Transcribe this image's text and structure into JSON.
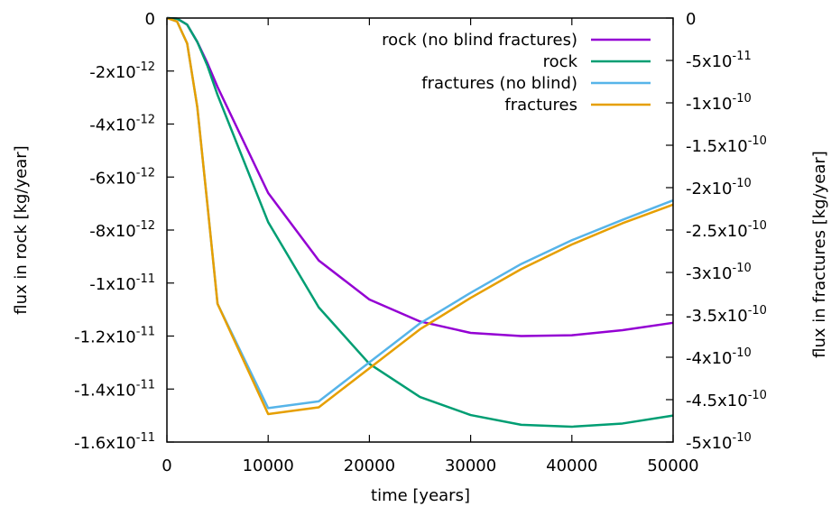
{
  "chart_data": {
    "type": "line",
    "xlabel": "time [years]",
    "ylabel_left": "flux in rock [kg/year]",
    "ylabel_right": "flux in fractures [kg/year]",
    "xlim": [
      0,
      50000
    ],
    "ylim_left": [
      -1.6e-11,
      0
    ],
    "ylim_right": [
      -5e-10,
      0
    ],
    "grid": false,
    "legend_position": "top-right",
    "x_ticks": [
      0,
      10000,
      20000,
      30000,
      40000,
      50000
    ],
    "x_tick_labels": [
      "0",
      "10000",
      "20000",
      "30000",
      "40000",
      "50000"
    ],
    "left_ticks": [
      0,
      -2e-12,
      -4e-12,
      -6e-12,
      -8e-12,
      -1e-11,
      -1.2e-11,
      -1.4e-11,
      -1.6e-11
    ],
    "left_tick_labels": [
      {
        "mant": "0",
        "exp": ""
      },
      {
        "mant": "-2x10",
        "exp": "-12"
      },
      {
        "mant": "-4x10",
        "exp": "-12"
      },
      {
        "mant": "-6x10",
        "exp": "-12"
      },
      {
        "mant": "-8x10",
        "exp": "-12"
      },
      {
        "mant": "-1x10",
        "exp": "-11"
      },
      {
        "mant": "-1.2x10",
        "exp": "-11"
      },
      {
        "mant": "-1.4x10",
        "exp": "-11"
      },
      {
        "mant": "-1.6x10",
        "exp": "-11"
      }
    ],
    "right_ticks": [
      0,
      -5e-11,
      -1e-10,
      -1.5e-10,
      -2e-10,
      -2.5e-10,
      -3e-10,
      -3.5e-10,
      -4e-10,
      -4.5e-10,
      -5e-10
    ],
    "right_tick_labels": [
      {
        "mant": "0",
        "exp": ""
      },
      {
        "mant": "-5x10",
        "exp": "-11"
      },
      {
        "mant": "-1x10",
        "exp": "-10"
      },
      {
        "mant": "-1.5x10",
        "exp": "-10"
      },
      {
        "mant": "-2x10",
        "exp": "-10"
      },
      {
        "mant": "-2.5x10",
        "exp": "-10"
      },
      {
        "mant": "-3x10",
        "exp": "-10"
      },
      {
        "mant": "-3.5x10",
        "exp": "-10"
      },
      {
        "mant": "-4x10",
        "exp": "-10"
      },
      {
        "mant": "-4.5x10",
        "exp": "-10"
      },
      {
        "mant": "-5x10",
        "exp": "-10"
      }
    ],
    "series": [
      {
        "name": "rock (no blind fractures)",
        "axis": "left",
        "color": "#9400d3",
        "x": [
          0,
          1000,
          2000,
          3000,
          4000,
          5000,
          10000,
          15000,
          20000,
          25000,
          30000,
          35000,
          40000,
          45000,
          50000
        ],
        "y": [
          0,
          -2e-14,
          -2.5e-13,
          -9e-13,
          -1.7e-12,
          -2.6e-12,
          -6.6e-12,
          -9.15e-12,
          -1.062e-11,
          -1.145e-11,
          -1.188e-11,
          -1.2e-11,
          -1.197e-11,
          -1.178e-11,
          -1.15e-11
        ]
      },
      {
        "name": "rock",
        "axis": "left",
        "color": "#009e73",
        "x": [
          0,
          1000,
          2000,
          3000,
          4000,
          5000,
          10000,
          15000,
          20000,
          25000,
          30000,
          35000,
          40000,
          45000,
          50000
        ],
        "y": [
          0,
          -2e-14,
          -2.5e-13,
          -9e-13,
          -1.8e-12,
          -2.9e-12,
          -7.7e-12,
          -1.092e-11,
          -1.305e-11,
          -1.43e-11,
          -1.498e-11,
          -1.535e-11,
          -1.542e-11,
          -1.53e-11,
          -1.5e-11
        ]
      },
      {
        "name": "fractures (no blind)",
        "axis": "right",
        "color": "#56b4e9",
        "x": [
          0,
          1000,
          2000,
          3000,
          4000,
          5000,
          10000,
          15000,
          20000,
          25000,
          30000,
          35000,
          40000,
          45000,
          50000
        ],
        "y": [
          0,
          -4e-12,
          -3e-11,
          -1.05e-10,
          -2.2e-10,
          -3.37e-10,
          -4.6e-10,
          -4.52e-10,
          -4.06e-10,
          -3.6e-10,
          -3.24e-10,
          -2.9e-10,
          -2.62e-10,
          -2.38e-10,
          -2.15e-10
        ]
      },
      {
        "name": "fractures",
        "axis": "right",
        "color": "#e69f00",
        "x": [
          0,
          1000,
          2000,
          3000,
          4000,
          5000,
          10000,
          15000,
          20000,
          25000,
          30000,
          35000,
          40000,
          45000,
          50000
        ],
        "y": [
          0,
          -4e-12,
          -3e-11,
          -1.05e-10,
          -2.2e-10,
          -3.37e-10,
          -4.67e-10,
          -4.59e-10,
          -4.13e-10,
          -3.67e-10,
          -3.3e-10,
          -2.96e-10,
          -2.67e-10,
          -2.42e-10,
          -2.2e-10
        ]
      }
    ]
  }
}
